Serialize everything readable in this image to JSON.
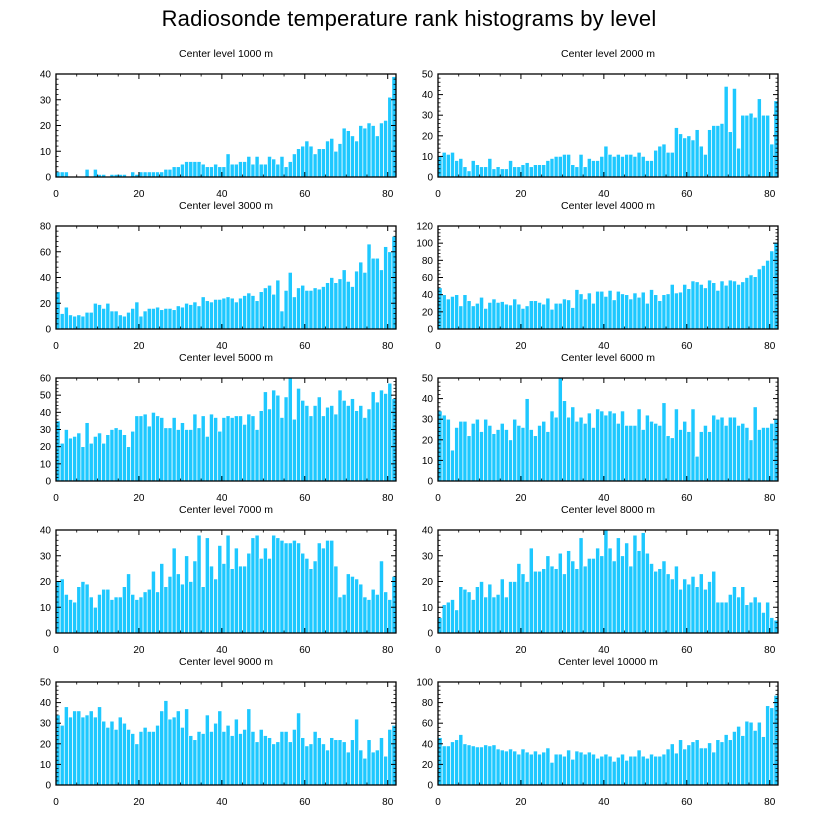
{
  "figure": {
    "title": "Radiosonde temperature rank histograms by level",
    "bar_color": "#1ec8ff",
    "bar_edge_color": "#ffffff"
  },
  "chart_data": [
    {
      "type": "bar",
      "title": "Center level 1000 m",
      "x_start": 0,
      "xlim": [
        0,
        82
      ],
      "ylim": [
        0,
        40
      ],
      "xticks": [
        0,
        20,
        40,
        60,
        80
      ],
      "yticks": [
        0,
        10,
        20,
        30,
        40
      ],
      "values": [
        2,
        2,
        2,
        0,
        0,
        0,
        0,
        3,
        0,
        3,
        1,
        1,
        0,
        1,
        1,
        1,
        1,
        0,
        2,
        1,
        2,
        2,
        2,
        2,
        2,
        2,
        3,
        3,
        4,
        4,
        5,
        6,
        6,
        6,
        6,
        5,
        4,
        4,
        5,
        4,
        4,
        9,
        5,
        5,
        6,
        6,
        8,
        5,
        8,
        5,
        5,
        8,
        7,
        5,
        8,
        4,
        6,
        9,
        11,
        12,
        14,
        12,
        9,
        11,
        11,
        14,
        15,
        10,
        13,
        19,
        18,
        16,
        14,
        20,
        19,
        21,
        20,
        16,
        21,
        22,
        31,
        39
      ]
    },
    {
      "type": "bar",
      "title": "Center level 2000 m",
      "x_start": 0,
      "xlim": [
        0,
        82
      ],
      "ylim": [
        0,
        50
      ],
      "xticks": [
        0,
        20,
        40,
        60,
        80
      ],
      "yticks": [
        0,
        10,
        20,
        30,
        40,
        50
      ],
      "values": [
        10,
        12,
        11,
        12,
        8,
        9,
        5,
        3,
        8,
        6,
        5,
        5,
        9,
        4,
        5,
        4,
        4,
        8,
        5,
        5,
        6,
        7,
        5,
        6,
        6,
        6,
        8,
        9,
        10,
        10,
        11,
        11,
        6,
        5,
        11,
        5,
        9,
        8,
        8,
        10,
        15,
        11,
        10,
        11,
        10,
        11,
        11,
        10,
        12,
        10,
        8,
        8,
        13,
        15,
        16,
        12,
        12,
        24,
        21,
        19,
        20,
        18,
        23,
        15,
        11,
        23,
        25,
        25,
        26,
        44,
        22,
        43,
        14,
        30,
        30,
        31,
        29,
        38,
        30,
        30,
        16,
        37
      ]
    },
    {
      "type": "bar",
      "title": "Center level 3000 m",
      "x_start": 0,
      "xlim": [
        0,
        82
      ],
      "ylim": [
        0,
        80
      ],
      "xticks": [
        0,
        20,
        40,
        60,
        80
      ],
      "yticks": [
        0,
        20,
        40,
        60,
        80
      ],
      "values": [
        29,
        12,
        17,
        11,
        10,
        11,
        10,
        13,
        13,
        20,
        19,
        16,
        20,
        14,
        14,
        11,
        10,
        13,
        16,
        21,
        10,
        14,
        16,
        16,
        17,
        15,
        16,
        16,
        15,
        18,
        17,
        20,
        19,
        21,
        18,
        25,
        22,
        21,
        23,
        23,
        24,
        25,
        24,
        21,
        24,
        26,
        28,
        26,
        22,
        29,
        32,
        34,
        27,
        38,
        14,
        30,
        44,
        25,
        32,
        34,
        30,
        30,
        32,
        31,
        33,
        36,
        40,
        36,
        39,
        46,
        37,
        33,
        45,
        52,
        44,
        66,
        55,
        55,
        46,
        64,
        60,
        72
      ]
    },
    {
      "type": "bar",
      "title": "Center level 4000 m",
      "x_start": 0,
      "xlim": [
        0,
        82
      ],
      "ylim": [
        0,
        120
      ],
      "xticks": [
        0,
        20,
        40,
        60,
        80
      ],
      "yticks": [
        0,
        20,
        40,
        60,
        80,
        100,
        120
      ],
      "values": [
        48,
        40,
        35,
        38,
        40,
        27,
        40,
        33,
        27,
        30,
        37,
        24,
        31,
        35,
        31,
        32,
        29,
        28,
        35,
        29,
        24,
        27,
        33,
        33,
        31,
        29,
        36,
        23,
        30,
        30,
        35,
        34,
        25,
        46,
        41,
        35,
        42,
        30,
        44,
        44,
        38,
        45,
        34,
        44,
        41,
        40,
        35,
        42,
        37,
        43,
        30,
        46,
        40,
        33,
        40,
        41,
        52,
        42,
        43,
        52,
        47,
        56,
        55,
        52,
        48,
        57,
        54,
        45,
        56,
        51,
        57,
        56,
        52,
        55,
        60,
        63,
        61,
        70,
        74,
        80,
        91,
        101
      ]
    },
    {
      "type": "bar",
      "title": "Center level 5000 m",
      "x_start": 0,
      "xlim": [
        0,
        82
      ],
      "ylim": [
        0,
        60
      ],
      "xticks": [
        0,
        20,
        40,
        60,
        80
      ],
      "yticks": [
        0,
        10,
        20,
        30,
        40,
        50,
        60
      ],
      "values": [
        35,
        22,
        30,
        25,
        26,
        28,
        20,
        34,
        22,
        26,
        28,
        22,
        27,
        30,
        31,
        30,
        27,
        20,
        29,
        38,
        38,
        39,
        32,
        40,
        38,
        37,
        31,
        31,
        37,
        30,
        34,
        30,
        30,
        39,
        31,
        38,
        26,
        39,
        37,
        29,
        37,
        38,
        37,
        38,
        38,
        33,
        39,
        38,
        30,
        41,
        52,
        42,
        53,
        50,
        37,
        49,
        60,
        36,
        54,
        47,
        44,
        38,
        44,
        49,
        38,
        43,
        44,
        39,
        53,
        47,
        44,
        48,
        41,
        44,
        37,
        42,
        52,
        46,
        53,
        51,
        57,
        48
      ]
    },
    {
      "type": "bar",
      "title": "Center level 6000 m",
      "x_start": 0,
      "xlim": [
        0,
        82
      ],
      "ylim": [
        0,
        50
      ],
      "xticks": [
        0,
        20,
        40,
        60,
        80
      ],
      "yticks": [
        0,
        10,
        20,
        30,
        40,
        50
      ],
      "values": [
        34,
        32,
        30,
        15,
        26,
        29,
        29,
        22,
        28,
        30,
        24,
        30,
        27,
        23,
        25,
        28,
        25,
        20,
        30,
        27,
        26,
        40,
        25,
        22,
        27,
        29,
        24,
        34,
        31,
        50,
        39,
        31,
        36,
        29,
        31,
        28,
        33,
        26,
        35,
        34,
        32,
        34,
        33,
        28,
        34,
        27,
        27,
        27,
        35,
        25,
        32,
        29,
        28,
        27,
        38,
        22,
        21,
        35,
        25,
        29,
        24,
        35,
        12,
        24,
        27,
        24,
        32,
        30,
        31,
        27,
        31,
        31,
        27,
        28,
        26,
        20,
        36,
        25,
        26,
        26,
        28,
        30
      ]
    },
    {
      "type": "bar",
      "title": "Center level 7000 m",
      "x_start": 0,
      "xlim": [
        0,
        82
      ],
      "ylim": [
        0,
        40
      ],
      "xticks": [
        0,
        20,
        40,
        60,
        80
      ],
      "yticks": [
        0,
        10,
        20,
        30,
        40
      ],
      "values": [
        20,
        21,
        15,
        13,
        12,
        18,
        20,
        19,
        14,
        10,
        15,
        17,
        17,
        13,
        14,
        14,
        18,
        23,
        15,
        13,
        14,
        16,
        17,
        24,
        16,
        27,
        18,
        22,
        33,
        23,
        19,
        30,
        20,
        28,
        38,
        18,
        37,
        26,
        21,
        34,
        27,
        38,
        25,
        33,
        26,
        26,
        31,
        37,
        38,
        29,
        33,
        29,
        38,
        37,
        36,
        35,
        35,
        36,
        35,
        31,
        29,
        25,
        28,
        35,
        33,
        36,
        36,
        26,
        14,
        15,
        23,
        22,
        21,
        19,
        14,
        13,
        17,
        15,
        28,
        16,
        13,
        22
      ]
    },
    {
      "type": "bar",
      "title": "Center level 8000 m",
      "x_start": 0,
      "xlim": [
        0,
        82
      ],
      "ylim": [
        0,
        40
      ],
      "xticks": [
        0,
        20,
        40,
        60,
        80
      ],
      "yticks": [
        0,
        10,
        20,
        30,
        40
      ],
      "values": [
        6,
        11,
        12,
        13,
        9,
        18,
        17,
        16,
        13,
        18,
        20,
        14,
        19,
        14,
        15,
        21,
        14,
        20,
        20,
        27,
        23,
        20,
        33,
        24,
        24,
        25,
        30,
        26,
        25,
        31,
        23,
        32,
        28,
        25,
        37,
        26,
        29,
        29,
        33,
        30,
        40,
        33,
        28,
        37,
        30,
        35,
        26,
        38,
        32,
        39,
        31,
        27,
        24,
        25,
        28,
        23,
        21,
        26,
        17,
        21,
        19,
        22,
        18,
        23,
        17,
        20,
        24,
        12,
        12,
        12,
        15,
        18,
        14,
        18,
        11,
        12,
        14,
        12,
        8,
        12,
        6,
        5
      ]
    },
    {
      "type": "bar",
      "title": "Center level 9000 m",
      "x_start": 0,
      "xlim": [
        0,
        82
      ],
      "ylim": [
        0,
        50
      ],
      "xticks": [
        0,
        20,
        40,
        60,
        80
      ],
      "yticks": [
        0,
        10,
        20,
        30,
        40,
        50
      ],
      "values": [
        34,
        29,
        38,
        33,
        36,
        36,
        33,
        34,
        36,
        33,
        38,
        31,
        28,
        31,
        27,
        33,
        30,
        27,
        25,
        20,
        26,
        28,
        26,
        26,
        29,
        36,
        41,
        32,
        33,
        36,
        28,
        37,
        24,
        22,
        26,
        25,
        34,
        26,
        30,
        36,
        26,
        29,
        24,
        32,
        25,
        27,
        37,
        26,
        21,
        27,
        24,
        23,
        20,
        21,
        26,
        26,
        21,
        27,
        35,
        23,
        19,
        20,
        26,
        23,
        20,
        17,
        23,
        22,
        22,
        21,
        16,
        22,
        32,
        17,
        13,
        22,
        16,
        17,
        23,
        14,
        27,
        29
      ]
    },
    {
      "type": "bar",
      "title": "Center level 10000 m",
      "x_start": 0,
      "xlim": [
        0,
        82
      ],
      "ylim": [
        0,
        100
      ],
      "xticks": [
        0,
        20,
        40,
        60,
        80
      ],
      "yticks": [
        0,
        20,
        40,
        60,
        80,
        100
      ],
      "values": [
        46,
        38,
        38,
        42,
        44,
        49,
        40,
        39,
        38,
        37,
        37,
        39,
        38,
        39,
        35,
        34,
        33,
        35,
        33,
        30,
        35,
        32,
        30,
        33,
        30,
        32,
        36,
        22,
        30,
        30,
        28,
        34,
        25,
        33,
        32,
        30,
        32,
        30,
        26,
        28,
        30,
        28,
        23,
        27,
        30,
        24,
        28,
        28,
        34,
        28,
        26,
        30,
        28,
        28,
        30,
        35,
        40,
        31,
        44,
        35,
        39,
        42,
        44,
        36,
        36,
        41,
        32,
        44,
        42,
        49,
        44,
        52,
        57,
        48,
        62,
        61,
        53,
        61,
        47,
        77,
        75,
        87
      ]
    }
  ]
}
